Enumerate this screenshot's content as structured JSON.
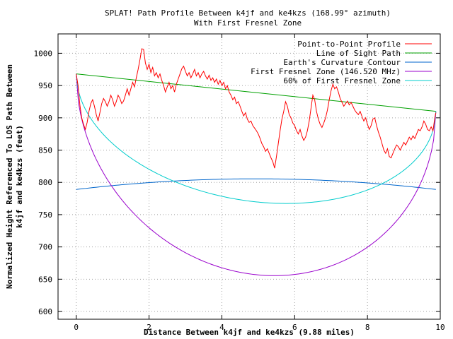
{
  "chart_data": {
    "type": "line",
    "title": "SPLAT! Path Profile Between k4jf and ke4kzs (168.99° azimuth)",
    "subtitle": "With First Fresnel Zone",
    "xlabel": "Distance Between k4jf and ke4kzs (9.88 miles)",
    "ylabel_line1": "Normalized Height Referenced To LOS Path Between",
    "ylabel_line2": "k4jf and ke4kzs (feet)",
    "xlim": [
      -0.5,
      10
    ],
    "ylim": [
      588,
      1030
    ],
    "x_ticks": [
      0,
      2,
      4,
      6,
      8,
      10
    ],
    "y_ticks": [
      600,
      650,
      700,
      750,
      800,
      850,
      900,
      950,
      1000
    ],
    "grid": true,
    "legend_position": "top-right",
    "series": [
      {
        "name": "Point-to-Point Profile",
        "color": "#ff0000",
        "points": [
          [
            0.0,
            968
          ],
          [
            0.05,
            950
          ],
          [
            0.1,
            920
          ],
          [
            0.15,
            900
          ],
          [
            0.2,
            890
          ],
          [
            0.25,
            882
          ],
          [
            0.3,
            893
          ],
          [
            0.35,
            910
          ],
          [
            0.4,
            922
          ],
          [
            0.45,
            928
          ],
          [
            0.5,
            918
          ],
          [
            0.55,
            905
          ],
          [
            0.6,
            895
          ],
          [
            0.65,
            908
          ],
          [
            0.7,
            922
          ],
          [
            0.75,
            930
          ],
          [
            0.8,
            925
          ],
          [
            0.85,
            918
          ],
          [
            0.9,
            925
          ],
          [
            0.95,
            935
          ],
          [
            1.0,
            928
          ],
          [
            1.05,
            918
          ],
          [
            1.1,
            925
          ],
          [
            1.15,
            935
          ],
          [
            1.2,
            930
          ],
          [
            1.25,
            922
          ],
          [
            1.3,
            926
          ],
          [
            1.35,
            935
          ],
          [
            1.4,
            945
          ],
          [
            1.45,
            935
          ],
          [
            1.5,
            945
          ],
          [
            1.55,
            955
          ],
          [
            1.6,
            948
          ],
          [
            1.65,
            962
          ],
          [
            1.7,
            975
          ],
          [
            1.75,
            990
          ],
          [
            1.8,
            1007
          ],
          [
            1.85,
            1006
          ],
          [
            1.9,
            985
          ],
          [
            1.95,
            975
          ],
          [
            2.0,
            983
          ],
          [
            2.05,
            970
          ],
          [
            2.1,
            978
          ],
          [
            2.15,
            965
          ],
          [
            2.2,
            970
          ],
          [
            2.25,
            962
          ],
          [
            2.3,
            968
          ],
          [
            2.35,
            958
          ],
          [
            2.4,
            950
          ],
          [
            2.45,
            940
          ],
          [
            2.5,
            948
          ],
          [
            2.55,
            955
          ],
          [
            2.6,
            945
          ],
          [
            2.65,
            950
          ],
          [
            2.7,
            940
          ],
          [
            2.75,
            952
          ],
          [
            2.8,
            960
          ],
          [
            2.85,
            968
          ],
          [
            2.9,
            976
          ],
          [
            2.95,
            980
          ],
          [
            3.0,
            972
          ],
          [
            3.05,
            965
          ],
          [
            3.1,
            970
          ],
          [
            3.15,
            962
          ],
          [
            3.2,
            968
          ],
          [
            3.25,
            975
          ],
          [
            3.3,
            965
          ],
          [
            3.35,
            970
          ],
          [
            3.4,
            962
          ],
          [
            3.45,
            968
          ],
          [
            3.5,
            972
          ],
          [
            3.55,
            965
          ],
          [
            3.6,
            960
          ],
          [
            3.65,
            966
          ],
          [
            3.7,
            958
          ],
          [
            3.75,
            962
          ],
          [
            3.8,
            955
          ],
          [
            3.85,
            960
          ],
          [
            3.9,
            952
          ],
          [
            3.95,
            958
          ],
          [
            4.0,
            950
          ],
          [
            4.05,
            955
          ],
          [
            4.1,
            945
          ],
          [
            4.15,
            950
          ],
          [
            4.2,
            940
          ],
          [
            4.25,
            935
          ],
          [
            4.3,
            928
          ],
          [
            4.35,
            932
          ],
          [
            4.4,
            922
          ],
          [
            4.45,
            925
          ],
          [
            4.5,
            918
          ],
          [
            4.55,
            910
          ],
          [
            4.6,
            903
          ],
          [
            4.65,
            908
          ],
          [
            4.7,
            898
          ],
          [
            4.75,
            893
          ],
          [
            4.8,
            895
          ],
          [
            4.85,
            888
          ],
          [
            4.9,
            884
          ],
          [
            4.95,
            880
          ],
          [
            5.0,
            875
          ],
          [
            5.05,
            868
          ],
          [
            5.1,
            860
          ],
          [
            5.15,
            855
          ],
          [
            5.2,
            848
          ],
          [
            5.25,
            852
          ],
          [
            5.3,
            845
          ],
          [
            5.35,
            838
          ],
          [
            5.4,
            832
          ],
          [
            5.45,
            822
          ],
          [
            5.5,
            840
          ],
          [
            5.55,
            860
          ],
          [
            5.6,
            880
          ],
          [
            5.65,
            898
          ],
          [
            5.7,
            910
          ],
          [
            5.75,
            925
          ],
          [
            5.8,
            918
          ],
          [
            5.85,
            905
          ],
          [
            5.9,
            900
          ],
          [
            5.95,
            892
          ],
          [
            6.0,
            888
          ],
          [
            6.05,
            880
          ],
          [
            6.1,
            875
          ],
          [
            6.15,
            882
          ],
          [
            6.2,
            872
          ],
          [
            6.25,
            865
          ],
          [
            6.3,
            870
          ],
          [
            6.35,
            880
          ],
          [
            6.4,
            895
          ],
          [
            6.45,
            915
          ],
          [
            6.5,
            935
          ],
          [
            6.55,
            928
          ],
          [
            6.6,
            910
          ],
          [
            6.65,
            898
          ],
          [
            6.7,
            890
          ],
          [
            6.75,
            885
          ],
          [
            6.8,
            892
          ],
          [
            6.85,
            900
          ],
          [
            6.9,
            912
          ],
          [
            6.95,
            928
          ],
          [
            7.0,
            942
          ],
          [
            7.05,
            952
          ],
          [
            7.1,
            945
          ],
          [
            7.15,
            948
          ],
          [
            7.2,
            940
          ],
          [
            7.25,
            930
          ],
          [
            7.3,
            924
          ],
          [
            7.35,
            918
          ],
          [
            7.4,
            922
          ],
          [
            7.45,
            926
          ],
          [
            7.5,
            920
          ],
          [
            7.55,
            924
          ],
          [
            7.6,
            918
          ],
          [
            7.65,
            912
          ],
          [
            7.7,
            908
          ],
          [
            7.75,
            905
          ],
          [
            7.8,
            910
          ],
          [
            7.85,
            902
          ],
          [
            7.9,
            895
          ],
          [
            7.95,
            900
          ],
          [
            8.0,
            890
          ],
          [
            8.05,
            882
          ],
          [
            8.1,
            888
          ],
          [
            8.15,
            898
          ],
          [
            8.2,
            900
          ],
          [
            8.25,
            888
          ],
          [
            8.3,
            878
          ],
          [
            8.35,
            870
          ],
          [
            8.4,
            860
          ],
          [
            8.45,
            850
          ],
          [
            8.5,
            845
          ],
          [
            8.55,
            852
          ],
          [
            8.6,
            840
          ],
          [
            8.65,
            838
          ],
          [
            8.7,
            845
          ],
          [
            8.75,
            852
          ],
          [
            8.8,
            858
          ],
          [
            8.85,
            855
          ],
          [
            8.9,
            850
          ],
          [
            8.95,
            856
          ],
          [
            9.0,
            862
          ],
          [
            9.05,
            858
          ],
          [
            9.1,
            864
          ],
          [
            9.15,
            870
          ],
          [
            9.2,
            866
          ],
          [
            9.25,
            872
          ],
          [
            9.3,
            868
          ],
          [
            9.35,
            875
          ],
          [
            9.4,
            882
          ],
          [
            9.45,
            880
          ],
          [
            9.5,
            886
          ],
          [
            9.55,
            895
          ],
          [
            9.6,
            890
          ],
          [
            9.65,
            882
          ],
          [
            9.7,
            880
          ],
          [
            9.75,
            886
          ],
          [
            9.8,
            880
          ],
          [
            9.85,
            900
          ],
          [
            9.88,
            908
          ]
        ]
      },
      {
        "name": "Line of Sight Path",
        "color": "#00a000",
        "points": [
          [
            0.0,
            968
          ],
          [
            9.88,
            910
          ]
        ]
      },
      {
        "name": "Earth's Curvature Contour",
        "color": "#0066cc",
        "curve": {
          "kind": "parabola",
          "base": 789,
          "depth": 16.5
        }
      },
      {
        "name": "First Fresnel Zone (146.520 MHz)",
        "color": "#9900cc",
        "curve": {
          "kind": "fresnel",
          "depth": 282
        }
      },
      {
        "name": "60% of First Fresnel Zone",
        "color": "#00cccc",
        "curve": {
          "kind": "fresnel",
          "depth": 169.2
        }
      }
    ]
  }
}
